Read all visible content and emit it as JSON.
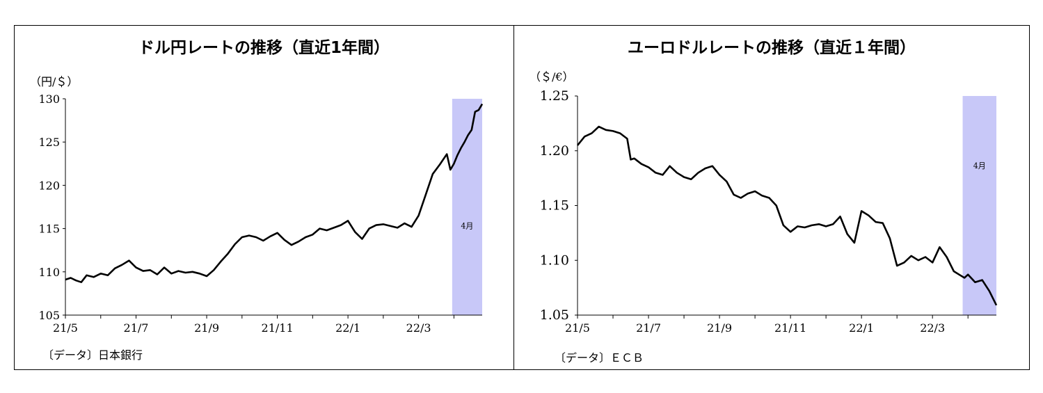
{
  "chart_data": [
    {
      "type": "line",
      "title": "ドル円レートの推移（直近1年間）",
      "unit_label": "（円/＄）",
      "source": "〔データ〕日本銀行",
      "ylim": [
        105,
        130
      ],
      "y_ticks": [
        "105",
        "110",
        "115",
        "120",
        "125",
        "130"
      ],
      "x_range": [
        0,
        11.8
      ],
      "x_ticks": [
        {
          "x": 0,
          "label": "21/5"
        },
        {
          "x": 2,
          "label": "21/7"
        },
        {
          "x": 4,
          "label": "21/9"
        },
        {
          "x": 6,
          "label": "21/11"
        },
        {
          "x": 8,
          "label": "22/1"
        },
        {
          "x": 10,
          "label": "22/3"
        }
      ],
      "minor_ticks": [
        1,
        3,
        5,
        7,
        9,
        11
      ],
      "highlight": {
        "x_start": 10.95,
        "x_end": 11.8,
        "label": "4月",
        "color": "#c8c8f8"
      },
      "series": [
        {
          "x": [
            0,
            0.15,
            0.3,
            0.45,
            0.6,
            0.8,
            1.0,
            1.2,
            1.4,
            1.6,
            1.8,
            2.0,
            2.2,
            2.4,
            2.6,
            2.8,
            3.0,
            3.2,
            3.4,
            3.6,
            3.8,
            4.0,
            4.2,
            4.4,
            4.6,
            4.8,
            5.0,
            5.2,
            5.4,
            5.6,
            5.8,
            6.0,
            6.2,
            6.4,
            6.6,
            6.8,
            7.0,
            7.2,
            7.4,
            7.6,
            7.8,
            8.0,
            8.2,
            8.4,
            8.6,
            8.8,
            9.0,
            9.2,
            9.4,
            9.6,
            9.8,
            10.0,
            10.2,
            10.4,
            10.6,
            10.8,
            10.9,
            11.0,
            11.1,
            11.2,
            11.3,
            11.4,
            11.5,
            11.6,
            11.7,
            11.8
          ],
          "values": [
            109.1,
            109.3,
            109.0,
            108.8,
            109.6,
            109.4,
            109.8,
            109.6,
            110.4,
            110.8,
            111.3,
            110.5,
            110.1,
            110.2,
            109.7,
            110.5,
            109.8,
            110.1,
            109.9,
            110.0,
            109.8,
            109.5,
            110.2,
            111.2,
            112.1,
            113.2,
            114.0,
            114.2,
            114.0,
            113.6,
            114.1,
            114.5,
            113.7,
            113.1,
            113.5,
            114.0,
            114.3,
            115.0,
            114.8,
            115.1,
            115.4,
            115.9,
            114.6,
            113.8,
            115.0,
            115.4,
            115.5,
            115.3,
            115.1,
            115.6,
            115.2,
            116.5,
            118.9,
            121.3,
            122.4,
            123.6,
            121.8,
            122.5,
            123.5,
            124.3,
            125.0,
            125.8,
            126.4,
            128.5,
            128.7,
            129.4
          ]
        }
      ]
    },
    {
      "type": "line",
      "title": "ユーロドルレートの推移（直近１年間）",
      "unit_label": "（＄/€）",
      "source": "〔データ〕ＥＣＢ",
      "ylim": [
        1.05,
        1.25
      ],
      "y_ticks": [
        "1.05",
        "1.10",
        "1.15",
        "1.20",
        "1.25"
      ],
      "x_range": [
        0,
        11.8
      ],
      "x_ticks": [
        {
          "x": 0,
          "label": "21/5"
        },
        {
          "x": 2,
          "label": "21/7"
        },
        {
          "x": 4,
          "label": "21/9"
        },
        {
          "x": 6,
          "label": "21/11"
        },
        {
          "x": 8,
          "label": "22/1"
        },
        {
          "x": 10,
          "label": "22/3"
        }
      ],
      "minor_ticks": [
        1,
        3,
        5,
        7,
        9,
        11
      ],
      "highlight": {
        "x_start": 10.85,
        "x_end": 11.8,
        "label": "4月",
        "color": "#c8c8f8"
      },
      "series": [
        {
          "x": [
            0,
            0.2,
            0.4,
            0.6,
            0.8,
            1.0,
            1.2,
            1.4,
            1.5,
            1.6,
            1.8,
            2.0,
            2.2,
            2.4,
            2.6,
            2.8,
            3.0,
            3.2,
            3.4,
            3.6,
            3.8,
            4.0,
            4.2,
            4.4,
            4.6,
            4.8,
            5.0,
            5.2,
            5.4,
            5.6,
            5.8,
            6.0,
            6.2,
            6.4,
            6.6,
            6.8,
            7.0,
            7.2,
            7.4,
            7.6,
            7.8,
            8.0,
            8.2,
            8.4,
            8.6,
            8.8,
            9.0,
            9.2,
            9.4,
            9.6,
            9.8,
            10.0,
            10.2,
            10.4,
            10.6,
            10.8,
            10.9,
            11.0,
            11.2,
            11.4,
            11.6,
            11.8
          ],
          "values": [
            1.205,
            1.213,
            1.216,
            1.222,
            1.219,
            1.218,
            1.216,
            1.211,
            1.192,
            1.193,
            1.188,
            1.185,
            1.18,
            1.178,
            1.186,
            1.18,
            1.176,
            1.174,
            1.18,
            1.184,
            1.186,
            1.178,
            1.172,
            1.16,
            1.157,
            1.161,
            1.163,
            1.159,
            1.157,
            1.15,
            1.132,
            1.126,
            1.131,
            1.13,
            1.132,
            1.133,
            1.131,
            1.133,
            1.14,
            1.124,
            1.116,
            1.145,
            1.141,
            1.135,
            1.134,
            1.12,
            1.095,
            1.098,
            1.104,
            1.1,
            1.103,
            1.098,
            1.112,
            1.103,
            1.09,
            1.086,
            1.084,
            1.087,
            1.08,
            1.082,
            1.072,
            1.059
          ]
        }
      ]
    }
  ]
}
